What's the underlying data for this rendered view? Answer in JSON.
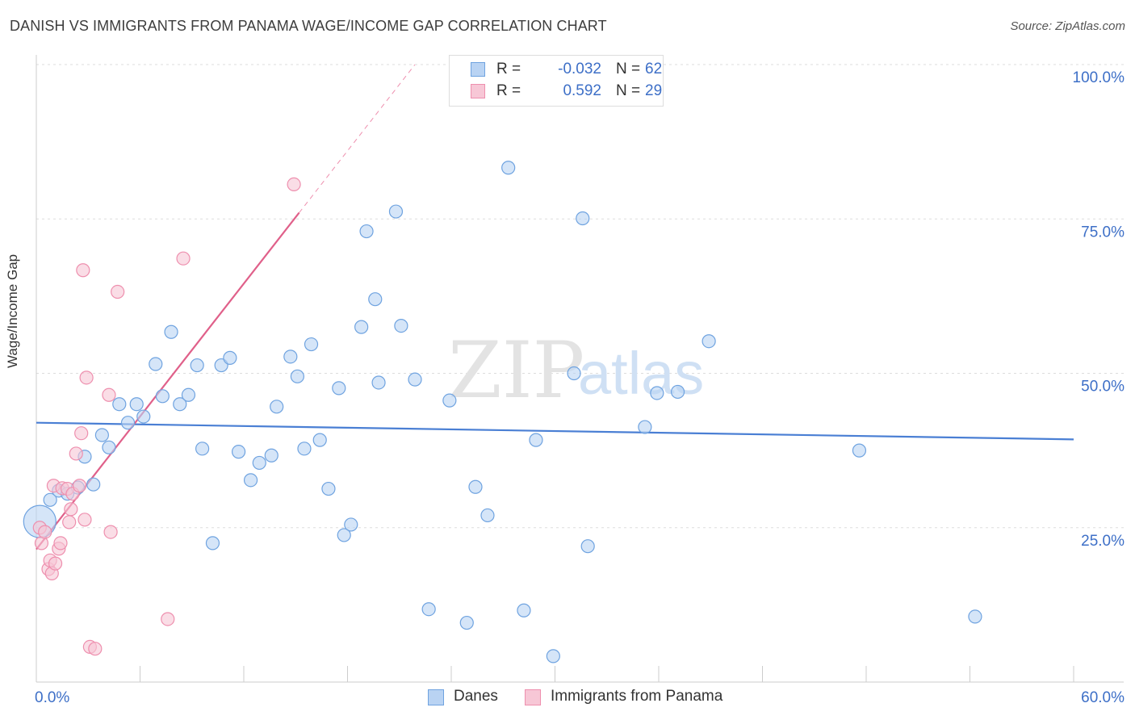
{
  "title": "DANISH VS IMMIGRANTS FROM PANAMA WAGE/INCOME GAP CORRELATION CHART",
  "source": "Source: ZipAtlas.com",
  "watermark": {
    "zip": "ZIP",
    "atlas": "atlas"
  },
  "legend_stats": [
    {
      "r_label": "R =",
      "r_value": "-0.032",
      "n_label": "N =",
      "n_value": "62",
      "color": "#6fa3e0",
      "fill": "#b9d3f3"
    },
    {
      "r_label": "R =",
      "r_value": "0.592",
      "n_label": "N =",
      "n_value": "29",
      "color": "#ee8fae",
      "fill": "#f7c7d6"
    }
  ],
  "bottom_legend": [
    {
      "label": "Danes",
      "color": "#6fa3e0",
      "fill": "#b9d3f3"
    },
    {
      "label": "Immigrants from Panama",
      "color": "#ee8fae",
      "fill": "#f7c7d6"
    }
  ],
  "chart_data": {
    "type": "scatter",
    "title": "DANISH VS IMMIGRANTS FROM PANAMA WAGE/INCOME GAP CORRELATION CHART",
    "xlabel": "",
    "ylabel": "Wage/Income Gap",
    "xlim": [
      0,
      60
    ],
    "ylim": [
      0,
      100
    ],
    "x_tick_labels": [
      "0.0%",
      "60.0%"
    ],
    "y_ticks": [
      25,
      50,
      75,
      100
    ],
    "y_tick_labels": [
      "25.0%",
      "50.0%",
      "75.0%",
      "100.0%"
    ],
    "grid": true,
    "legend_placement": "top-center",
    "series": [
      {
        "name": "Danes",
        "color": "#4a7fd4",
        "fill": "#b9d3f3",
        "stroke": "#6fa3e0",
        "points": [
          [
            0.2,
            26
          ],
          [
            0.8,
            29.5
          ],
          [
            1.3,
            31
          ],
          [
            1.8,
            30.5
          ],
          [
            2.4,
            31.5
          ],
          [
            2.8,
            36.5
          ],
          [
            3.3,
            32
          ],
          [
            3.8,
            40
          ],
          [
            4.2,
            38
          ],
          [
            4.8,
            45
          ],
          [
            5.3,
            42
          ],
          [
            5.8,
            45
          ],
          [
            6.2,
            43
          ],
          [
            6.9,
            51.5
          ],
          [
            7.3,
            46.3
          ],
          [
            7.8,
            56.7
          ],
          [
            8.3,
            45
          ],
          [
            8.8,
            46.5
          ],
          [
            9.3,
            51.3
          ],
          [
            9.6,
            37.8
          ],
          [
            10.2,
            22.5
          ],
          [
            10.7,
            51.3
          ],
          [
            11.2,
            52.5
          ],
          [
            11.7,
            37.3
          ],
          [
            12.4,
            32.7
          ],
          [
            12.9,
            35.5
          ],
          [
            13.6,
            36.7
          ],
          [
            13.9,
            44.6
          ],
          [
            14.7,
            52.7
          ],
          [
            15.1,
            49.5
          ],
          [
            15.5,
            37.8
          ],
          [
            15.9,
            54.7
          ],
          [
            16.4,
            39.2
          ],
          [
            16.9,
            31.3
          ],
          [
            17.5,
            47.6
          ],
          [
            17.8,
            23.8
          ],
          [
            18.2,
            25.5
          ],
          [
            18.8,
            57.5
          ],
          [
            19.1,
            73
          ],
          [
            19.6,
            62
          ],
          [
            19.8,
            48.5
          ],
          [
            20.8,
            76.2
          ],
          [
            21.1,
            57.7
          ],
          [
            21.9,
            49
          ],
          [
            22.7,
            11.8
          ],
          [
            23.9,
            45.6
          ],
          [
            24.9,
            9.6
          ],
          [
            25.4,
            31.6
          ],
          [
            26.1,
            27
          ],
          [
            27.3,
            83.3
          ],
          [
            28.2,
            11.6
          ],
          [
            28.9,
            39.2
          ],
          [
            29.9,
            4.2
          ],
          [
            31.1,
            50
          ],
          [
            31.6,
            75.1
          ],
          [
            31.9,
            22
          ],
          [
            35.2,
            41.3
          ],
          [
            35.9,
            46.8
          ],
          [
            37.1,
            47
          ],
          [
            38.9,
            55.2
          ],
          [
            47.6,
            37.5
          ],
          [
            54.3,
            10.6
          ]
        ],
        "trend": {
          "x": [
            0,
            60
          ],
          "y": [
            42,
            39.3
          ]
        }
      },
      {
        "name": "Immigrants from Panama",
        "color": "#e0608a",
        "fill": "#f7c7d6",
        "stroke": "#ee8fae",
        "points": [
          [
            0.2,
            25
          ],
          [
            0.3,
            22.5
          ],
          [
            0.5,
            24.3
          ],
          [
            0.7,
            18.3
          ],
          [
            0.8,
            19.7
          ],
          [
            0.9,
            17.6
          ],
          [
            1.0,
            31.8
          ],
          [
            1.1,
            19.2
          ],
          [
            1.3,
            21.6
          ],
          [
            1.4,
            22.5
          ],
          [
            1.5,
            31.4
          ],
          [
            1.8,
            31.3
          ],
          [
            1.9,
            25.9
          ],
          [
            2.0,
            28
          ],
          [
            2.1,
            30.5
          ],
          [
            2.3,
            37
          ],
          [
            2.5,
            31.8
          ],
          [
            2.6,
            40.3
          ],
          [
            2.7,
            66.7
          ],
          [
            2.8,
            26.3
          ],
          [
            2.9,
            49.3
          ],
          [
            3.1,
            5.7
          ],
          [
            3.4,
            5.4
          ],
          [
            4.2,
            46.5
          ],
          [
            4.3,
            24.3
          ],
          [
            4.7,
            63.2
          ],
          [
            7.6,
            10.2
          ],
          [
            8.5,
            68.6
          ],
          [
            14.9,
            80.6
          ]
        ],
        "trend": {
          "x": [
            0,
            15.2
          ],
          "y": [
            21.5,
            76
          ],
          "dashed_to": {
            "x": 21.9,
            "y": 100
          }
        }
      }
    ]
  }
}
